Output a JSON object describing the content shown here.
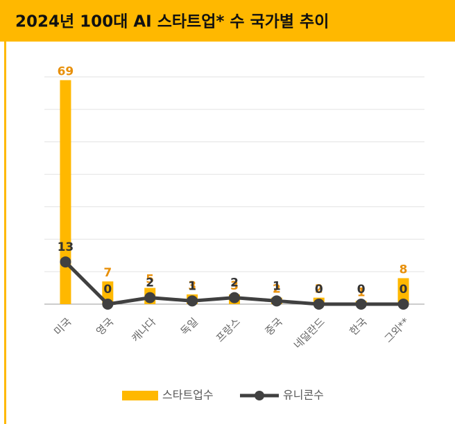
{
  "chart_data": {
    "type": "bar_line",
    "title": "2024년 100대 AI 스타트업* 수 국가별 추이",
    "categories": [
      "미국",
      "영국",
      "캐나다",
      "독일",
      "프랑스",
      "중국",
      "네덜란드",
      "한국",
      "그외**"
    ],
    "series": [
      {
        "name": "스타트업수",
        "type": "bar",
        "color": "#FFB800",
        "label_color": "#E8900A",
        "values": [
          69,
          7,
          5,
          3,
          3,
          2,
          2,
          1,
          8
        ]
      },
      {
        "name": "유니콘수",
        "type": "line",
        "color": "#404040",
        "label_color": "#333333",
        "values": [
          13,
          0,
          2,
          1,
          2,
          1,
          0,
          0,
          0
        ]
      }
    ],
    "ylim": [
      0,
      70
    ],
    "yticks": [
      0,
      10,
      20,
      30,
      40,
      50,
      60,
      70
    ],
    "grid": true,
    "legend": "bottom"
  }
}
